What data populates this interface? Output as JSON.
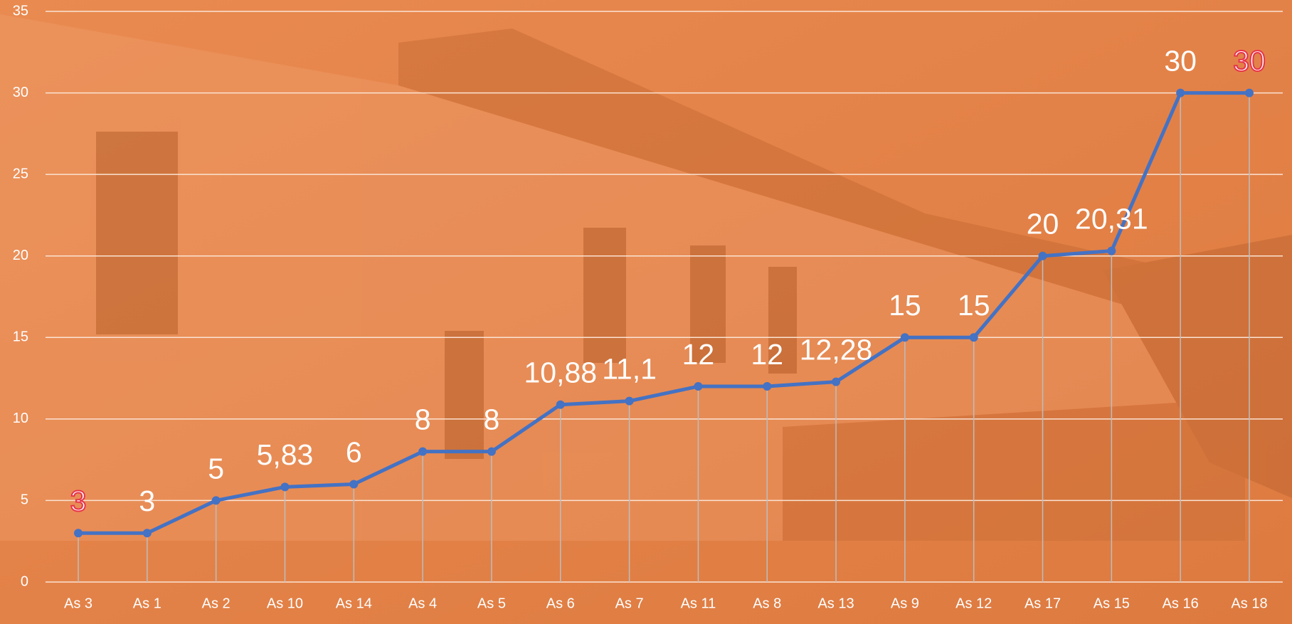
{
  "chart_data": {
    "type": "line",
    "categories": [
      "As 3",
      "As 1",
      "As 2",
      "As 10",
      "As 14",
      "As 4",
      "As 5",
      "As 6",
      "As 7",
      "As 11",
      "As 8",
      "As 13",
      "As 9",
      "As 12",
      "As 17",
      "As 15",
      "As 16",
      "As 18"
    ],
    "series": [
      {
        "color": "#4472c4",
        "values": [
          3,
          3,
          5,
          5.83,
          6,
          8,
          8,
          10.88,
          11.1,
          12,
          12,
          12.28,
          15,
          15,
          20,
          20.31,
          30,
          30
        ],
        "value_labels": [
          "3",
          "3",
          "5",
          "5,83",
          "6",
          "8",
          "8",
          "10,88",
          "11,1",
          "12",
          "12",
          "12,28",
          "15",
          "15",
          "20",
          "20,31",
          "30",
          "30"
        ],
        "value_label_colors": [
          "#e8334a",
          "#ffffff",
          "#ffffff",
          "#ffffff",
          "#ffffff",
          "#ffffff",
          "#ffffff",
          "#ffffff",
          "#ffffff",
          "#ffffff",
          "#ffffff",
          "#ffffff",
          "#ffffff",
          "#ffffff",
          "#ffffff",
          "#ffffff",
          "#ffffff",
          "#e8334a"
        ]
      }
    ],
    "ylim": [
      0,
      35
    ],
    "yticks": [
      0,
      5,
      10,
      15,
      20,
      25,
      30,
      35
    ],
    "grid": true,
    "drop_lines": true
  }
}
